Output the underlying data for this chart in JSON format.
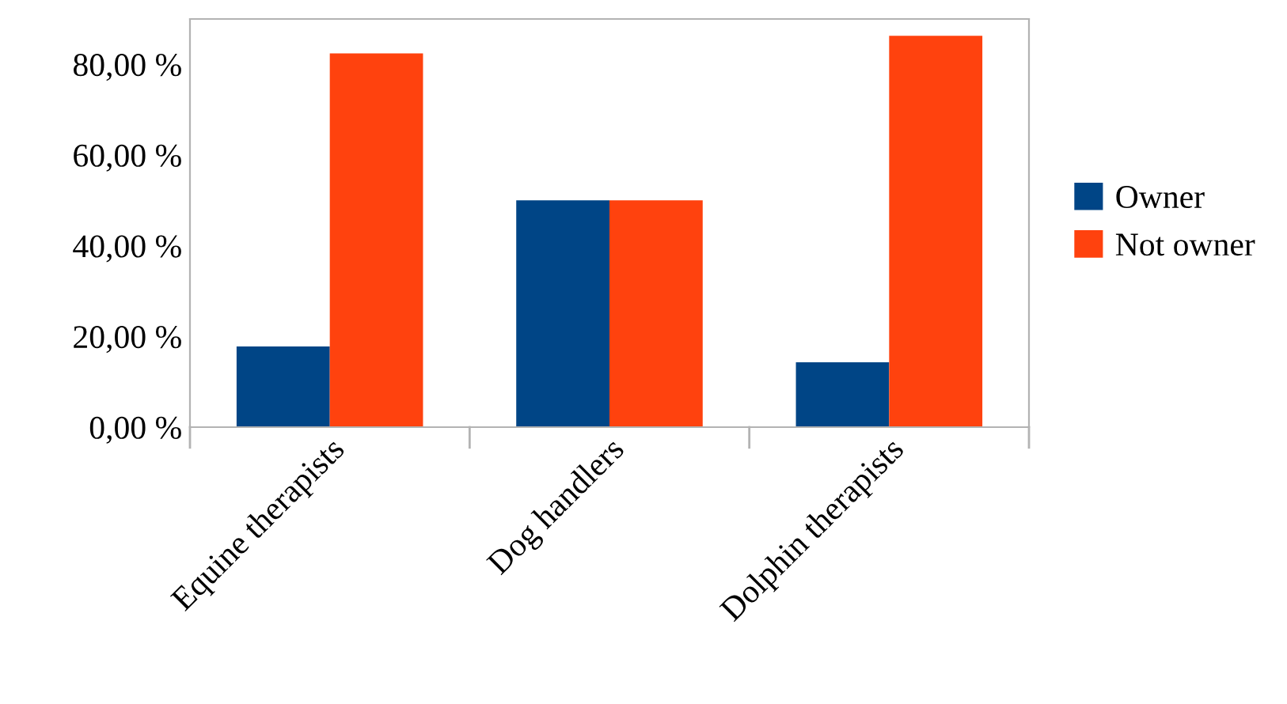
{
  "chart_data": {
    "type": "bar",
    "categories": [
      "Equine therapists",
      "Dog handlers",
      "Dolphin therapists"
    ],
    "series": [
      {
        "name": "Owner",
        "color": "#004586",
        "values": [
          17.8,
          50,
          14.3
        ]
      },
      {
        "name": "Not owner",
        "color": "#ff420e",
        "values": [
          82.4,
          50,
          86.3
        ]
      }
    ],
    "ylim": [
      0,
      90
    ],
    "yticks": [
      {
        "value": 0,
        "label": "0,00 %"
      },
      {
        "value": 20,
        "label": "20,00 %"
      },
      {
        "value": 40,
        "label": "40,00 %"
      },
      {
        "value": 60,
        "label": "60,00 %"
      },
      {
        "value": 80,
        "label": "80,00 %"
      }
    ],
    "grid": false,
    "legend": "right"
  }
}
